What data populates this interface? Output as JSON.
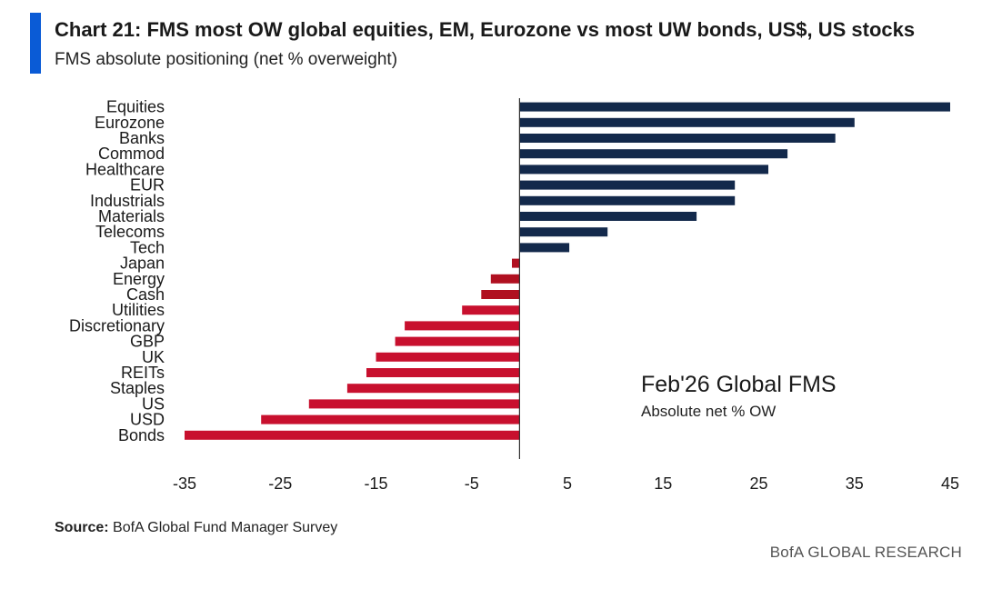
{
  "header": {
    "title": "Chart 21: FMS most OW global equities, EM, Eurozone vs most UW bonds, US$, US stocks",
    "subtitle": "FMS absolute positioning (net % overweight)"
  },
  "annotation": {
    "main": "Feb'26 Global FMS",
    "sub": "Absolute net % OW"
  },
  "footer": {
    "source_label": "Source:",
    "source_text": "BofA Global Fund Manager Survey",
    "brand": "BofA GLOBAL RESEARCH"
  },
  "colors": {
    "positive": "#13294b",
    "small_negative": "#b01020",
    "negative": "#c8102e",
    "accent": "#0a5bd6"
  },
  "chart_data": {
    "type": "bar",
    "orientation": "horizontal",
    "title": "Chart 21: FMS most OW global equities, EM, Eurozone vs most UW bonds, US$, US stocks",
    "subtitle": "FMS absolute positioning (net % overweight)",
    "xlabel": "",
    "ylabel": "",
    "xlim": [
      -35,
      45
    ],
    "xticks": [
      -35,
      -25,
      -15,
      -5,
      5,
      15,
      25,
      35,
      45
    ],
    "categories": [
      "Equities",
      "Eurozone",
      "Banks",
      "Commod",
      "Healthcare",
      "EUR",
      "Industrials",
      "Materials",
      "Telecoms",
      "Tech",
      "Japan",
      "Energy",
      "Cash",
      "Utilities",
      "Discretionary",
      "GBP",
      "UK",
      "REITs",
      "Staples",
      "US",
      "USD",
      "Bonds"
    ],
    "values": [
      45,
      35,
      33,
      28,
      26,
      22.5,
      22.5,
      18.5,
      9.2,
      5.2,
      -0.8,
      -3,
      -4,
      -6,
      -12,
      -13,
      -15,
      -16,
      -18,
      -22,
      -27,
      -35
    ]
  }
}
